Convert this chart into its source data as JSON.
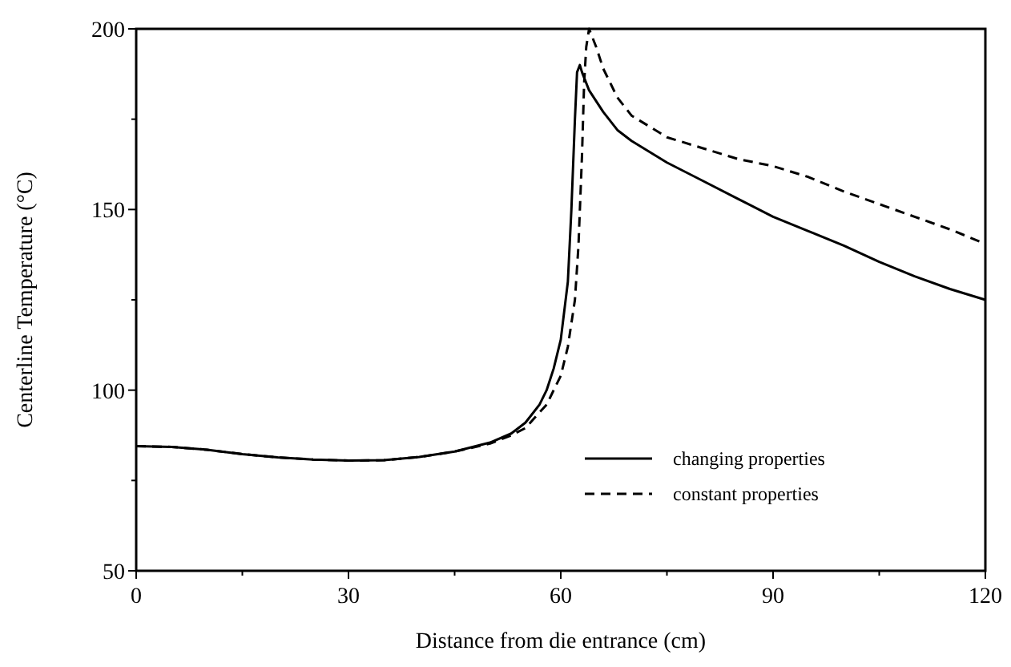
{
  "chart_data": {
    "type": "line",
    "xlabel": "Distance from die entrance (cm)",
    "ylabel": "Centerline Temperature (°C)",
    "xlim": [
      0,
      120
    ],
    "ylim": [
      50,
      200
    ],
    "xticks": [
      0,
      {
        "value": 15,
        "label": null
      },
      30,
      {
        "value": 45,
        "label": null
      },
      60,
      {
        "value": 75,
        "label": null
      },
      90,
      {
        "value": 105,
        "label": null
      },
      120
    ],
    "yticks": [
      50,
      {
        "value": 75,
        "label": null
      },
      100,
      {
        "value": 125,
        "label": null
      },
      150,
      {
        "value": 175,
        "label": null
      },
      200
    ],
    "legend": "bottom right",
    "grid": false,
    "series": [
      {
        "name": "changing properties",
        "color": "#000000",
        "line_style": "solid",
        "x": [
          0,
          5,
          10,
          15,
          20,
          25,
          30,
          35,
          40,
          45,
          50,
          53,
          55,
          57,
          58,
          59,
          60,
          61,
          61.5,
          62,
          62.3,
          62.7,
          63,
          64,
          66,
          68,
          70,
          75,
          80,
          85,
          90,
          95,
          100,
          105,
          110,
          115,
          120
        ],
        "values": [
          84.5,
          84.3,
          83.5,
          82.3,
          81.4,
          80.8,
          80.5,
          80.6,
          81.5,
          83,
          85.5,
          88,
          91,
          96,
          100,
          106,
          114,
          130,
          150,
          175,
          188,
          190,
          188,
          183,
          177,
          172,
          169,
          163,
          158,
          153,
          148,
          144,
          140,
          135.5,
          131.5,
          128,
          125
        ]
      },
      {
        "name": "constant properties",
        "color": "#000000",
        "line_style": "dashed",
        "x": [
          0,
          5,
          10,
          15,
          20,
          25,
          30,
          35,
          40,
          45,
          50,
          53,
          55,
          58,
          60,
          61,
          62,
          62.5,
          63,
          63.3,
          63.6,
          64,
          65,
          66,
          68,
          70,
          75,
          80,
          85,
          90,
          95,
          100,
          105,
          110,
          115,
          120
        ],
        "values": [
          84.5,
          84.3,
          83.5,
          82.3,
          81.4,
          80.8,
          80.5,
          80.6,
          81.5,
          83,
          85.2,
          87.5,
          89.5,
          96,
          104,
          112,
          125,
          140,
          165,
          185,
          195,
          200,
          195,
          189,
          181,
          176,
          170,
          167,
          164,
          162,
          159,
          155,
          151.5,
          148,
          144.5,
          140.5
        ]
      }
    ]
  }
}
